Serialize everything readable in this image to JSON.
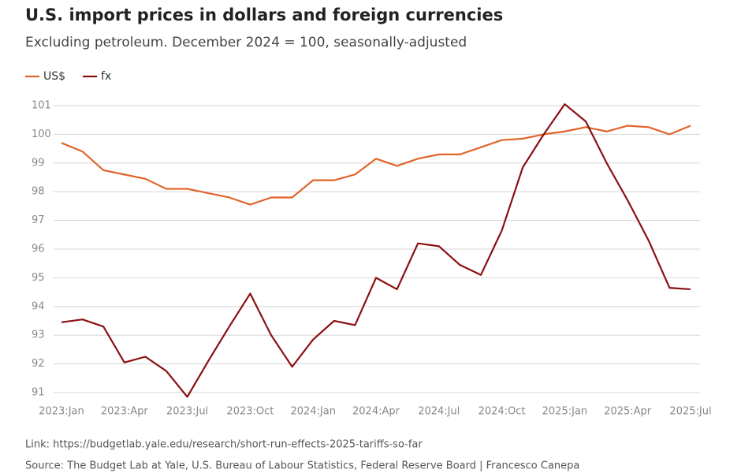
{
  "chart_data": {
    "type": "line",
    "title": "U.S. import prices in dollars and foreign currencies",
    "subtitle": "Excluding petroleum. December 2024 = 100, seasonally-adjusted",
    "categories": [
      "2023:Jan",
      null,
      null,
      "2023:Apr",
      null,
      null,
      "2023:Jul",
      null,
      null,
      "2023:Oct",
      null,
      null,
      "2024:Jan",
      null,
      null,
      "2024:Apr",
      null,
      null,
      "2024:Jul",
      null,
      null,
      "2024:Oct",
      null,
      null,
      "2025:Jan",
      null,
      null,
      "2025:Apr",
      null,
      null,
      "2025:Jul"
    ],
    "series": [
      {
        "name": "US$",
        "color": "#e0642a",
        "values": [
          99.7,
          99.4,
          98.75,
          98.6,
          98.45,
          98.1,
          98.1,
          97.95,
          97.8,
          97.55,
          97.8,
          97.8,
          98.4,
          98.4,
          98.6,
          99.15,
          98.9,
          99.15,
          99.3,
          99.3,
          99.55,
          99.8,
          99.85,
          100.0,
          100.1,
          100.25,
          100.1,
          100.3,
          100.25,
          100.0,
          100.3
        ]
      },
      {
        "name": "fx",
        "color": "#8b1010",
        "values": [
          93.45,
          93.55,
          93.3,
          92.05,
          92.25,
          91.75,
          90.85,
          92.1,
          93.3,
          94.45,
          93.0,
          91.9,
          92.85,
          93.5,
          93.35,
          95.0,
          94.6,
          96.2,
          96.1,
          95.45,
          95.1,
          96.65,
          98.85,
          100.0,
          101.05,
          100.45,
          99.0,
          97.7,
          96.3,
          94.65,
          94.6
        ]
      }
    ],
    "ylim": [
      91,
      101
    ],
    "yticks": [
      91,
      92,
      93,
      94,
      95,
      96,
      97,
      98,
      99,
      100,
      101
    ],
    "grid": true,
    "legend": "top-left",
    "footnotes": [
      "Link: https://budgetlab.yale.edu/research/short-run-effects-2025-tariffs-so-far",
      "Source: The Budget Lab at Yale, U.S. Bureau of Labour Statistics, Federal Reserve Board  | Francesco Canepa"
    ]
  }
}
